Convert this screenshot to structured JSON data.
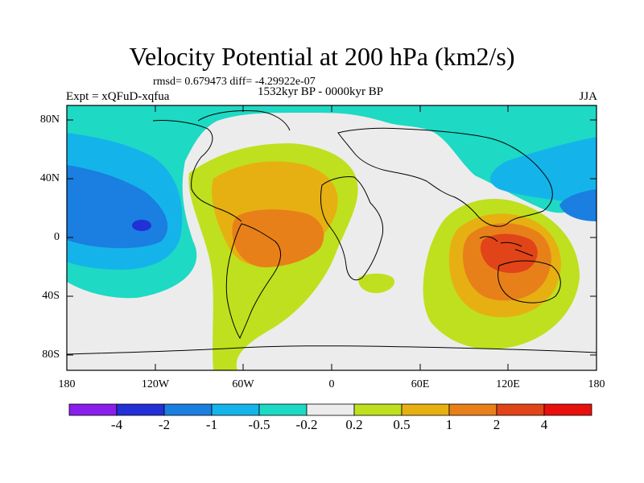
{
  "title": "Velocity Potential at 200 hPa (km2/s)",
  "stats": "rmsd= 0.679473 diff= -4.29922e-07",
  "experiment": "Expt = xQFuD-xqfua",
  "period": "1532kyr BP - 0000kyr BP",
  "season": "JJA",
  "y_ticks": [
    "80N",
    "40N",
    "0",
    "40S",
    "80S"
  ],
  "x_ticks": [
    "180",
    "120W",
    "60W",
    "0",
    "60E",
    "120E",
    "180"
  ],
  "colorbar": {
    "labels": [
      "-4",
      "-2",
      "-1",
      "-0.5",
      "-0.2",
      "0.2",
      "0.5",
      "1",
      "2",
      "4"
    ],
    "colors": [
      "#8a1eea",
      "#2230d6",
      "#1a7fe0",
      "#14b4ea",
      "#1ed9c4",
      "#ececec",
      "#bfe01e",
      "#e6b012",
      "#e8801a",
      "#e04418",
      "#e8100c"
    ]
  },
  "chart_data": {
    "type": "heatmap",
    "variable": "Velocity Potential at 200 hPa",
    "units": "km2/s",
    "x_range": [
      -180,
      180
    ],
    "y_range": [
      -90,
      90
    ],
    "levels": [
      -4,
      -2,
      -1,
      -0.5,
      -0.2,
      0.2,
      0.5,
      1,
      2,
      4
    ],
    "features": [
      {
        "region": "western Pacific / Maritime Continent",
        "lon": 125,
        "lat": 0,
        "peak_level": "2 to 4"
      },
      {
        "region": "equatorial Atlantic / South America",
        "lon": -40,
        "lat": 5,
        "peak_level": "1 to 2"
      },
      {
        "region": "central Pacific",
        "lon": -125,
        "lat": 5,
        "min_level": "-4 to -2"
      },
      {
        "region": "northern Asia / Arctic",
        "lon": 150,
        "lat": 40,
        "min_level": "-1 to -0.5"
      }
    ]
  }
}
